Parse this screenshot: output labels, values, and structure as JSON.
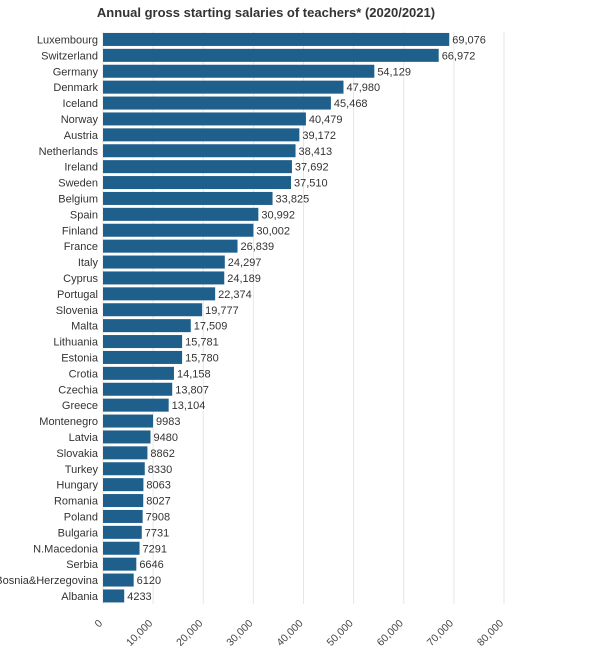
{
  "chart_data": {
    "type": "bar",
    "orientation": "horizontal",
    "title": "Annual gross starting salaries of teachers* (2020/2021)",
    "xlabel": "",
    "ylabel": "",
    "xlim": [
      0,
      80000
    ],
    "grid": true,
    "color": "#1f5f8b",
    "categories": [
      "Luxembourg",
      "Switzerland",
      "Germany",
      "Denmark",
      "Iceland",
      "Norway",
      "Austria",
      "Netherlands",
      "Ireland",
      "Sweden",
      "Belgium",
      "Spain",
      "Finland",
      "France",
      "Italy",
      "Cyprus",
      "Portugal",
      "Slovenia",
      "Malta",
      "Lithuania",
      "Estonia",
      "Crotia",
      "Czechia",
      "Greece",
      "Montenegro",
      "Latvia",
      "Slovakia",
      "Turkey",
      "Hungary",
      "Romania",
      "Poland",
      "Bulgaria",
      "N.Macedonia",
      "Serbia",
      "Bosnia&Herzegovina",
      "Albania"
    ],
    "values": [
      69076,
      66972,
      54129,
      47980,
      45468,
      40479,
      39172,
      38413,
      37692,
      37510,
      33825,
      30992,
      30002,
      26839,
      24297,
      24189,
      22374,
      19777,
      17509,
      15781,
      15780,
      14158,
      13807,
      13104,
      9983,
      9480,
      8862,
      8330,
      8063,
      8027,
      7908,
      7731,
      7291,
      6646,
      6120,
      4233
    ],
    "value_labels": [
      "69,076",
      "66,972",
      "54,129",
      "47,980",
      "45,468",
      "40,479",
      "39,172",
      "38,413",
      "37,692",
      "37,510",
      "33,825",
      "30,992",
      "30,002",
      "26,839",
      "24,297",
      "24,189",
      "22,374",
      "19,777",
      "17,509",
      "15,781",
      "15,780",
      "14,158",
      "13,807",
      "13,104",
      "9983",
      "9480",
      "8862",
      "8330",
      "8063",
      "8027",
      "7908",
      "7731",
      "7291",
      "6646",
      "6120",
      "4233"
    ],
    "x_ticks": [
      0,
      10000,
      20000,
      30000,
      40000,
      50000,
      60000,
      70000,
      80000
    ],
    "x_tick_labels": [
      "0",
      "10,000",
      "20,000",
      "30,000",
      "40,000",
      "50,000",
      "60,000",
      "70,000",
      "80,000"
    ]
  }
}
